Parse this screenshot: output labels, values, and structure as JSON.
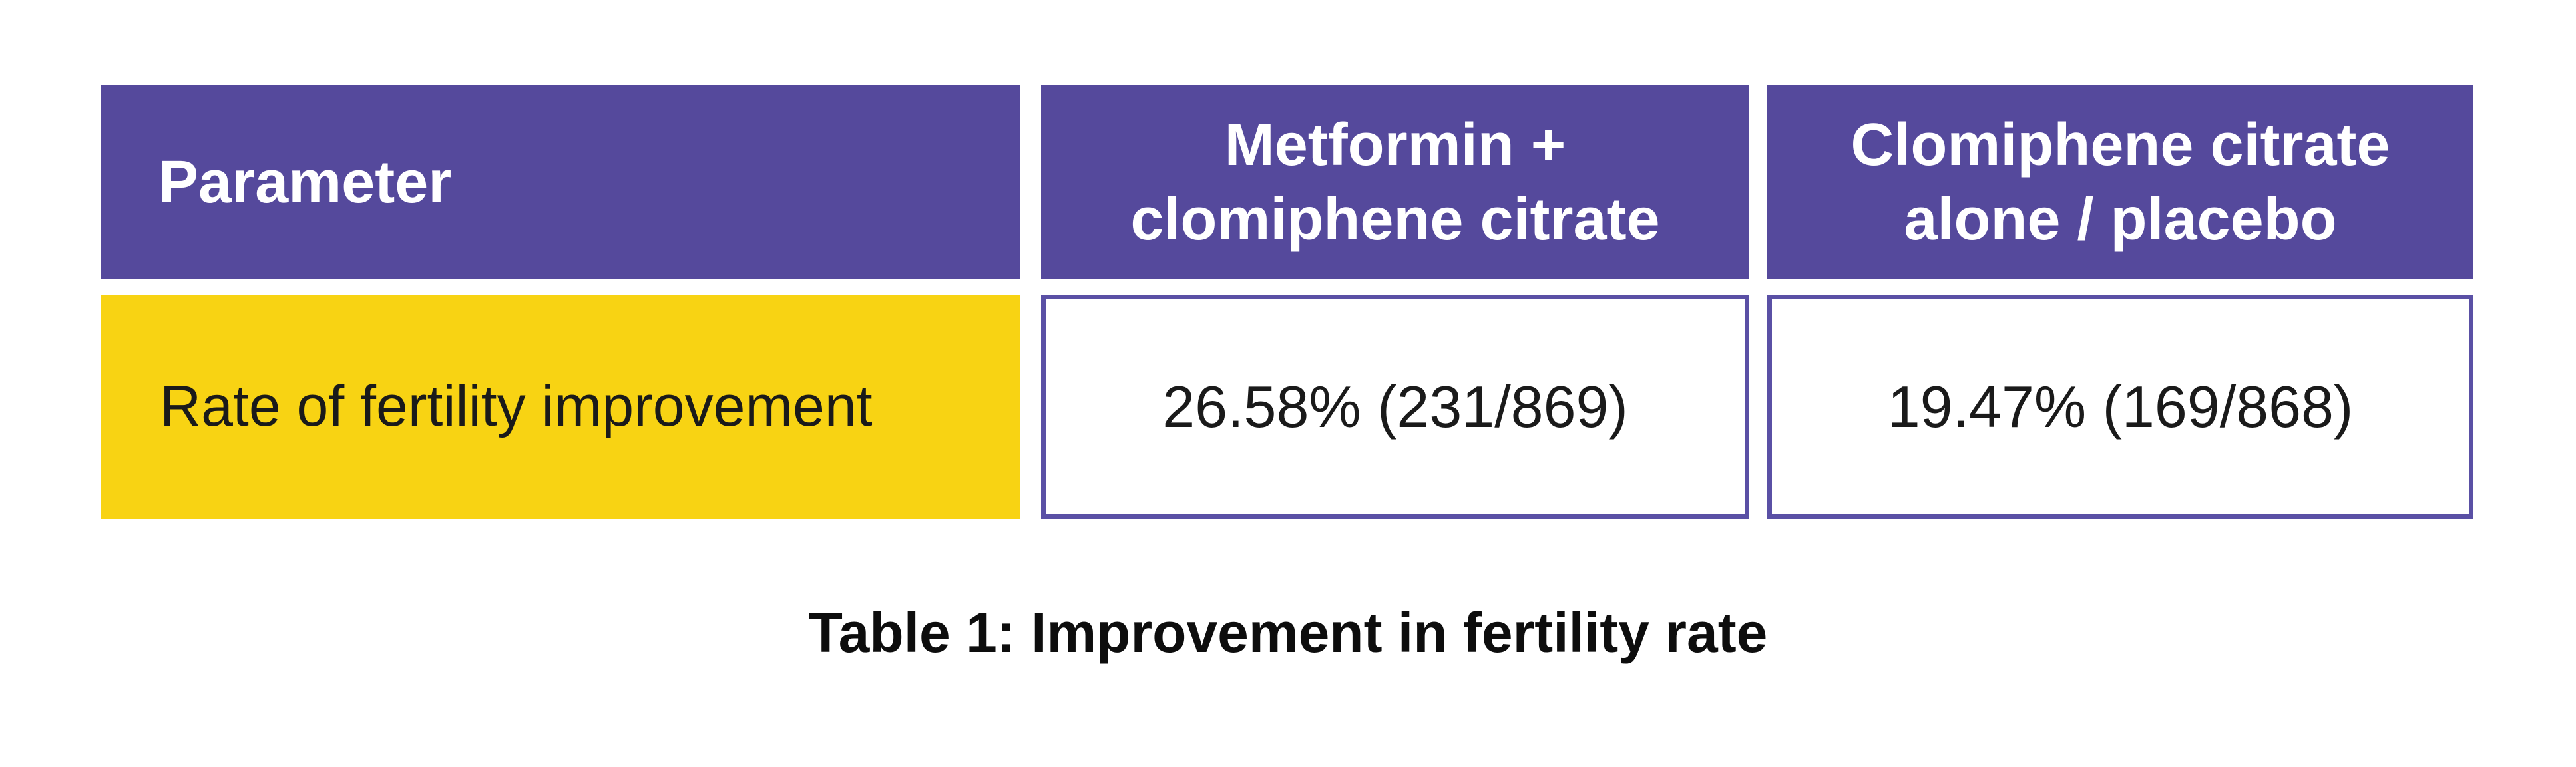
{
  "colors": {
    "header_purple": "#55499C",
    "cell_border_purple": "#5A50A5",
    "row_yellow": "#F8D313",
    "header_text": "#FFFFFF",
    "body_text": "#1A1A1A",
    "background": "#FFFFFF"
  },
  "table": {
    "header": {
      "col1": "Parameter",
      "col2_line1": "Metformin +",
      "col2_line2": "clomiphene citrate",
      "col3_line1": "Clomiphene citrate",
      "col3_line2": "alone / placebo"
    },
    "row": {
      "label": "Rate of fertility improvement",
      "value_metformin_clomiphene": "26.58% (231/869)",
      "value_clomiphene_placebo": "19.47% (169/868)"
    }
  },
  "caption": "Table 1: Improvement in fertility rate"
}
